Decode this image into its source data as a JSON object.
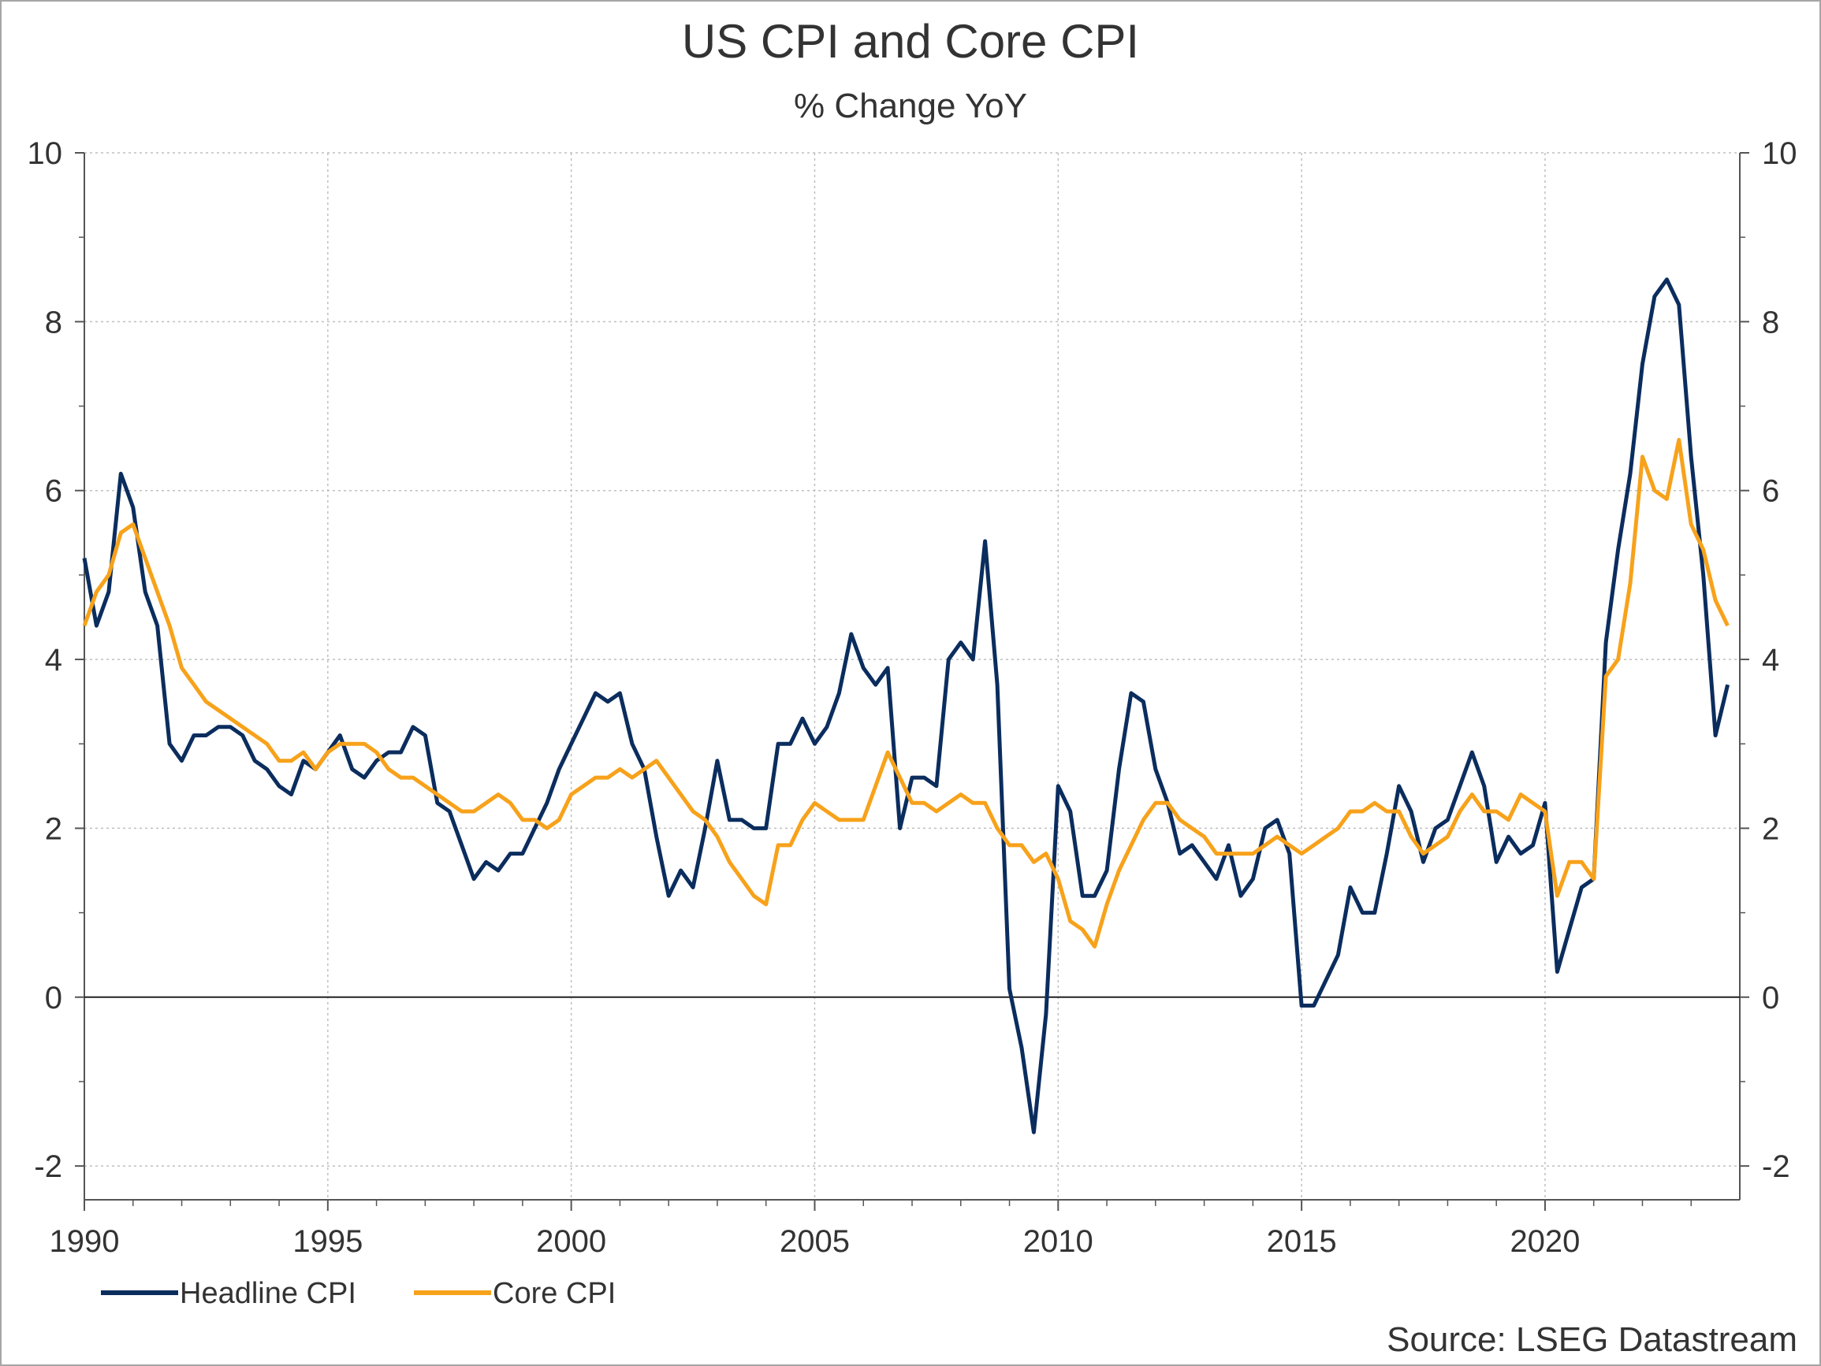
{
  "chart_data": {
    "type": "line",
    "title": "US CPI and Core CPI",
    "subtitle": "% Change YoY",
    "source": "Source: LSEG Datastream",
    "xlim": [
      1990,
      2024.0
    ],
    "ylim": [
      -2.4,
      10
    ],
    "x_ticks": [
      1990,
      1995,
      2000,
      2005,
      2010,
      2015,
      2020
    ],
    "y_ticks": [
      -2,
      0,
      2,
      4,
      6,
      8,
      10
    ],
    "grid": true,
    "legend": "bottom-left",
    "series": [
      {
        "name": "Headline CPI",
        "color": "#0b2d5e",
        "x": [
          1990.0,
          1990.25,
          1990.5,
          1990.75,
          1991.0,
          1991.25,
          1991.5,
          1991.75,
          1992.0,
          1992.25,
          1992.5,
          1992.75,
          1993.0,
          1993.25,
          1993.5,
          1993.75,
          1994.0,
          1994.25,
          1994.5,
          1994.75,
          1995.0,
          1995.25,
          1995.5,
          1995.75,
          1996.0,
          1996.25,
          1996.5,
          1996.75,
          1997.0,
          1997.25,
          1997.5,
          1997.75,
          1998.0,
          1998.25,
          1998.5,
          1998.75,
          1999.0,
          1999.25,
          1999.5,
          1999.75,
          2000.0,
          2000.25,
          2000.5,
          2000.75,
          2001.0,
          2001.25,
          2001.5,
          2001.75,
          2002.0,
          2002.25,
          2002.5,
          2002.75,
          2003.0,
          2003.25,
          2003.5,
          2003.75,
          2004.0,
          2004.25,
          2004.5,
          2004.75,
          2005.0,
          2005.25,
          2005.5,
          2005.75,
          2006.0,
          2006.25,
          2006.5,
          2006.75,
          2007.0,
          2007.25,
          2007.5,
          2007.75,
          2008.0,
          2008.25,
          2008.5,
          2008.75,
          2009.0,
          2009.25,
          2009.5,
          2009.75,
          2010.0,
          2010.25,
          2010.5,
          2010.75,
          2011.0,
          2011.25,
          2011.5,
          2011.75,
          2012.0,
          2012.25,
          2012.5,
          2012.75,
          2013.0,
          2013.25,
          2013.5,
          2013.75,
          2014.0,
          2014.25,
          2014.5,
          2014.75,
          2015.0,
          2015.25,
          2015.5,
          2015.75,
          2016.0,
          2016.25,
          2016.5,
          2016.75,
          2017.0,
          2017.25,
          2017.5,
          2017.75,
          2018.0,
          2018.25,
          2018.5,
          2018.75,
          2019.0,
          2019.25,
          2019.5,
          2019.75,
          2020.0,
          2020.25,
          2020.5,
          2020.75,
          2021.0,
          2021.25,
          2021.5,
          2021.75,
          2022.0,
          2022.25,
          2022.5,
          2022.75,
          2023.0,
          2023.25,
          2023.5,
          2023.75
        ],
        "values": [
          5.2,
          4.4,
          4.8,
          6.2,
          5.8,
          4.8,
          4.4,
          3.0,
          2.8,
          3.1,
          3.1,
          3.2,
          3.2,
          3.1,
          2.8,
          2.7,
          2.5,
          2.4,
          2.8,
          2.7,
          2.9,
          3.1,
          2.7,
          2.6,
          2.8,
          2.9,
          2.9,
          3.2,
          3.1,
          2.3,
          2.2,
          1.8,
          1.4,
          1.6,
          1.5,
          1.7,
          1.7,
          2.0,
          2.3,
          2.7,
          3.0,
          3.3,
          3.6,
          3.5,
          3.6,
          3.0,
          2.7,
          1.9,
          1.2,
          1.5,
          1.3,
          2.0,
          2.8,
          2.1,
          2.1,
          2.0,
          2.0,
          3.0,
          3.0,
          3.3,
          3.0,
          3.2,
          3.6,
          4.3,
          3.9,
          3.7,
          3.9,
          2.0,
          2.6,
          2.6,
          2.5,
          4.0,
          4.2,
          4.0,
          5.4,
          3.7,
          0.1,
          -0.6,
          -1.6,
          -0.2,
          2.5,
          2.2,
          1.2,
          1.2,
          1.5,
          2.7,
          3.6,
          3.5,
          2.7,
          2.3,
          1.7,
          1.8,
          1.6,
          1.4,
          1.8,
          1.2,
          1.4,
          2.0,
          2.1,
          1.7,
          -0.1,
          -0.1,
          0.2,
          0.5,
          1.3,
          1.0,
          1.0,
          1.7,
          2.5,
          2.2,
          1.6,
          2.0,
          2.1,
          2.5,
          2.9,
          2.5,
          1.6,
          1.9,
          1.7,
          1.8,
          2.3,
          0.3,
          0.8,
          1.3,
          1.4,
          4.2,
          5.3,
          6.2,
          7.5,
          8.3,
          8.5,
          8.2,
          6.4,
          5.0,
          3.1,
          3.7
        ]
      },
      {
        "name": "Core CPI",
        "color": "#f7a21b",
        "x": [
          1990.0,
          1990.25,
          1990.5,
          1990.75,
          1991.0,
          1991.25,
          1991.5,
          1991.75,
          1992.0,
          1992.25,
          1992.5,
          1992.75,
          1993.0,
          1993.25,
          1993.5,
          1993.75,
          1994.0,
          1994.25,
          1994.5,
          1994.75,
          1995.0,
          1995.25,
          1995.5,
          1995.75,
          1996.0,
          1996.25,
          1996.5,
          1996.75,
          1997.0,
          1997.25,
          1997.5,
          1997.75,
          1998.0,
          1998.25,
          1998.5,
          1998.75,
          1999.0,
          1999.25,
          1999.5,
          1999.75,
          2000.0,
          2000.25,
          2000.5,
          2000.75,
          2001.0,
          2001.25,
          2001.5,
          2001.75,
          2002.0,
          2002.25,
          2002.5,
          2002.75,
          2003.0,
          2003.25,
          2003.5,
          2003.75,
          2004.0,
          2004.25,
          2004.5,
          2004.75,
          2005.0,
          2005.25,
          2005.5,
          2005.75,
          2006.0,
          2006.25,
          2006.5,
          2006.75,
          2007.0,
          2007.25,
          2007.5,
          2007.75,
          2008.0,
          2008.25,
          2008.5,
          2008.75,
          2009.0,
          2009.25,
          2009.5,
          2009.75,
          2010.0,
          2010.25,
          2010.5,
          2010.75,
          2011.0,
          2011.25,
          2011.5,
          2011.75,
          2012.0,
          2012.25,
          2012.5,
          2012.75,
          2013.0,
          2013.25,
          2013.5,
          2013.75,
          2014.0,
          2014.25,
          2014.5,
          2014.75,
          2015.0,
          2015.25,
          2015.5,
          2015.75,
          2016.0,
          2016.25,
          2016.5,
          2016.75,
          2017.0,
          2017.25,
          2017.5,
          2017.75,
          2018.0,
          2018.25,
          2018.5,
          2018.75,
          2019.0,
          2019.25,
          2019.5,
          2019.75,
          2020.0,
          2020.25,
          2020.5,
          2020.75,
          2021.0,
          2021.25,
          2021.5,
          2021.75,
          2022.0,
          2022.25,
          2022.5,
          2022.75,
          2023.0,
          2023.25,
          2023.5,
          2023.75
        ],
        "values": [
          4.4,
          4.8,
          5.0,
          5.5,
          5.6,
          5.2,
          4.8,
          4.4,
          3.9,
          3.7,
          3.5,
          3.4,
          3.3,
          3.2,
          3.1,
          3.0,
          2.8,
          2.8,
          2.9,
          2.7,
          2.9,
          3.0,
          3.0,
          3.0,
          2.9,
          2.7,
          2.6,
          2.6,
          2.5,
          2.4,
          2.3,
          2.2,
          2.2,
          2.3,
          2.4,
          2.3,
          2.1,
          2.1,
          2.0,
          2.1,
          2.4,
          2.5,
          2.6,
          2.6,
          2.7,
          2.6,
          2.7,
          2.8,
          2.6,
          2.4,
          2.2,
          2.1,
          1.9,
          1.6,
          1.4,
          1.2,
          1.1,
          1.8,
          1.8,
          2.1,
          2.3,
          2.2,
          2.1,
          2.1,
          2.1,
          2.5,
          2.9,
          2.6,
          2.3,
          2.3,
          2.2,
          2.3,
          2.4,
          2.3,
          2.3,
          2.0,
          1.8,
          1.8,
          1.6,
          1.7,
          1.4,
          0.9,
          0.8,
          0.6,
          1.1,
          1.5,
          1.8,
          2.1,
          2.3,
          2.3,
          2.1,
          2.0,
          1.9,
          1.7,
          1.7,
          1.7,
          1.7,
          1.8,
          1.9,
          1.8,
          1.7,
          1.8,
          1.9,
          2.0,
          2.2,
          2.2,
          2.3,
          2.2,
          2.2,
          1.9,
          1.7,
          1.8,
          1.9,
          2.2,
          2.4,
          2.2,
          2.2,
          2.1,
          2.4,
          2.3,
          2.2,
          1.2,
          1.6,
          1.6,
          1.4,
          3.8,
          4.0,
          4.9,
          6.4,
          6.0,
          5.9,
          6.6,
          5.6,
          5.3,
          4.7,
          4.4
        ]
      }
    ]
  }
}
